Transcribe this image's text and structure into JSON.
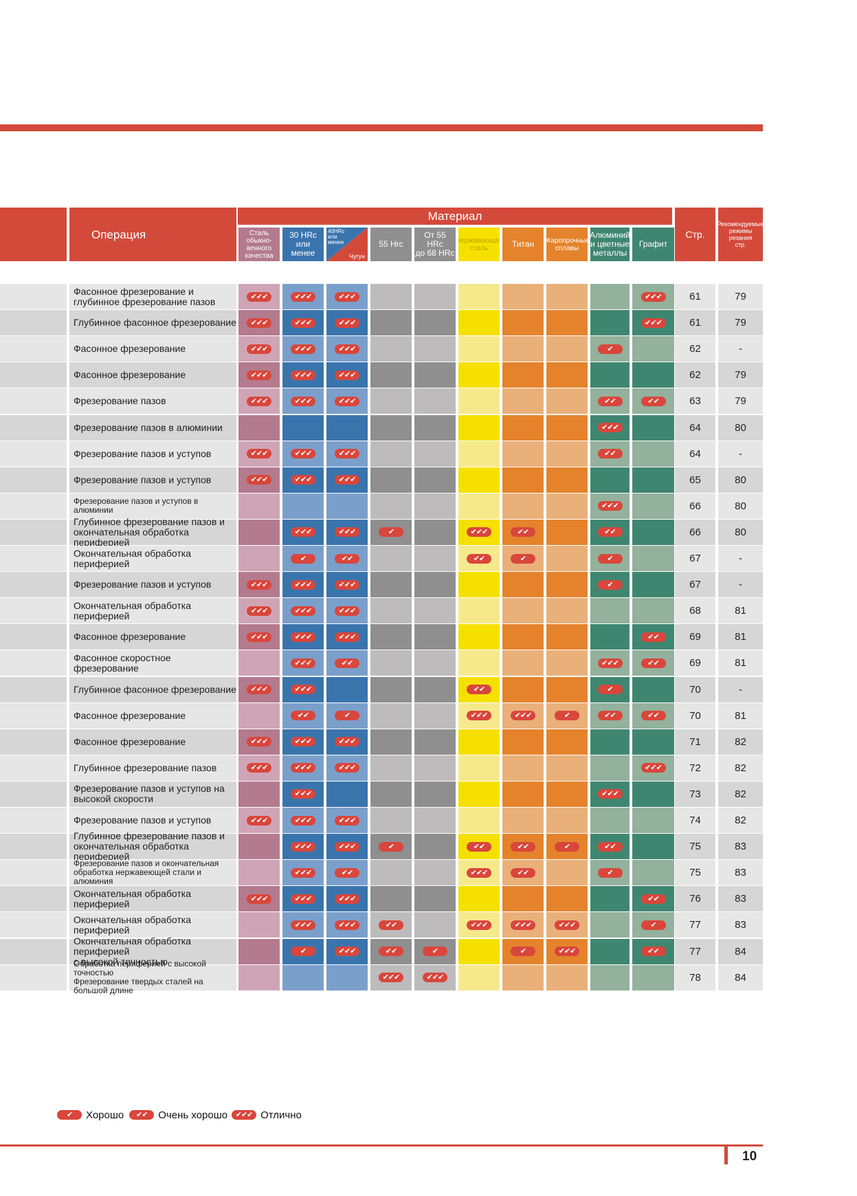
{
  "header": {
    "operation_label": "Операция",
    "material_label": "Материал",
    "page_col": "Стр.",
    "rec_col": "Рекомендуемые\nрежимы\nрезания\nстр."
  },
  "materials": [
    {
      "label": "Сталь\nобыкно-\nвенного\nкачества",
      "color": "#b47a8e",
      "light": "#cfa5b6",
      "small": true
    },
    {
      "label": "30 HRc\nили менее",
      "color": "#3a74ad",
      "light": "#7b9fcb",
      "small": false
    },
    {
      "label_a": "40HRc\nили\nменее",
      "label_b": "Чугун",
      "color": "#3a74ad",
      "light": "#7b9fcb",
      "cast": true
    },
    {
      "label": "55 Hrc",
      "color": "#8f8f8f",
      "light": "#bdbbbb",
      "small": false
    },
    {
      "label": "От 55 HRc\nдо 68 HRc",
      "color": "#8f8f8f",
      "light": "#bdbbbb",
      "small": false
    },
    {
      "label": "Нержавеющая\nсталь",
      "color": "#f6e000",
      "light": "#f6e98c",
      "small": true,
      "text_color": "#b8a400"
    },
    {
      "label": "Титан",
      "color": "#e4832c",
      "light": "#e9b07a",
      "small": false
    },
    {
      "label": "Жаропрочные\nсплавы",
      "color": "#e4832c",
      "light": "#e9b07a",
      "small": true
    },
    {
      "label": "Алюминий\nи цветные\nметаллы",
      "color": "#3f8670",
      "light": "#93b19c",
      "small": false
    },
    {
      "label": "Графит",
      "color": "#3f8670",
      "light": "#93b19c",
      "small": false
    }
  ],
  "rows": [
    {
      "op": "Фасонное фрезерование и\nглубинное фрезерование пазов",
      "r": [
        3,
        3,
        3,
        0,
        0,
        0,
        0,
        0,
        0,
        3
      ],
      "page": "61",
      "rec": "79"
    },
    {
      "op": "Глубинное фасонное фрезерование",
      "r": [
        3,
        3,
        3,
        0,
        0,
        0,
        0,
        0,
        0,
        3
      ],
      "page": "61",
      "rec": "79"
    },
    {
      "op": "Фасонное фрезерование",
      "r": [
        3,
        3,
        3,
        0,
        0,
        0,
        0,
        0,
        1,
        0
      ],
      "page": "62",
      "rec": "-"
    },
    {
      "op": "Фасонное фрезерование",
      "r": [
        3,
        3,
        3,
        0,
        0,
        0,
        0,
        0,
        0,
        0
      ],
      "page": "62",
      "rec": "79"
    },
    {
      "op": "Фрезерование пазов",
      "r": [
        3,
        3,
        3,
        0,
        0,
        0,
        0,
        0,
        2,
        2
      ],
      "page": "63",
      "rec": "79"
    },
    {
      "op": "Фрезерование пазов в алюминии",
      "r": [
        0,
        0,
        0,
        0,
        0,
        0,
        0,
        0,
        3,
        0
      ],
      "page": "64",
      "rec": "80"
    },
    {
      "op": "Фрезерование пазов и уступов",
      "r": [
        3,
        3,
        3,
        0,
        0,
        0,
        0,
        0,
        2,
        0
      ],
      "page": "64",
      "rec": "-"
    },
    {
      "op": "Фрезерование пазов и уступов",
      "r": [
        3,
        3,
        3,
        0,
        0,
        0,
        0,
        0,
        0,
        0
      ],
      "page": "65",
      "rec": "80"
    },
    {
      "op": "Фрезерование пазов и уступов в алюминии",
      "r": [
        0,
        0,
        0,
        0,
        0,
        0,
        0,
        0,
        3,
        0
      ],
      "page": "66",
      "rec": "80",
      "small": true
    },
    {
      "op": "Глубинное фрезерование пазов и\nокончательная обработка периферией",
      "r": [
        0,
        3,
        3,
        1,
        0,
        3,
        2,
        0,
        2,
        0
      ],
      "page": "66",
      "rec": "80"
    },
    {
      "op": "Окончательная обработка периферией",
      "r": [
        0,
        1,
        2,
        0,
        0,
        2,
        1,
        0,
        1,
        0
      ],
      "page": "67",
      "rec": "-"
    },
    {
      "op": "Фрезерование пазов и уступов",
      "r": [
        3,
        3,
        3,
        0,
        0,
        0,
        0,
        0,
        1,
        0
      ],
      "page": "67",
      "rec": "-"
    },
    {
      "op": "Окончательная обработка периферией",
      "r": [
        3,
        3,
        3,
        0,
        0,
        0,
        0,
        0,
        0,
        0
      ],
      "page": "68",
      "rec": "81"
    },
    {
      "op": "Фасонное фрезерование",
      "r": [
        3,
        3,
        3,
        0,
        0,
        0,
        0,
        0,
        0,
        2
      ],
      "page": "69",
      "rec": "81"
    },
    {
      "op": "Фасонное скоростное\nфрезерование",
      "r": [
        0,
        3,
        2,
        0,
        0,
        0,
        0,
        0,
        3,
        2
      ],
      "page": "69",
      "rec": "81"
    },
    {
      "op": "Глубинное фасонное фрезерование",
      "r": [
        3,
        3,
        0,
        0,
        0,
        2,
        0,
        0,
        1,
        0
      ],
      "page": "70",
      "rec": "-"
    },
    {
      "op": "Фасонное фрезерование",
      "r": [
        0,
        2,
        1,
        0,
        0,
        3,
        3,
        1,
        2,
        2
      ],
      "page": "70",
      "rec": "81"
    },
    {
      "op": "Фасонное фрезерование",
      "r": [
        3,
        3,
        3,
        0,
        0,
        0,
        0,
        0,
        0,
        0
      ],
      "page": "71",
      "rec": "82"
    },
    {
      "op": "Глубинное фрезерование пазов",
      "r": [
        3,
        3,
        3,
        0,
        0,
        0,
        0,
        0,
        0,
        3
      ],
      "page": "72",
      "rec": "82"
    },
    {
      "op": "Фрезерование пазов и уступов на\nвысокой скорости",
      "r": [
        0,
        3,
        0,
        0,
        0,
        0,
        0,
        0,
        3,
        0
      ],
      "page": "73",
      "rec": "82"
    },
    {
      "op": "Фрезерование пазов и уступов",
      "r": [
        3,
        3,
        3,
        0,
        0,
        0,
        0,
        0,
        0,
        0
      ],
      "page": "74",
      "rec": "82"
    },
    {
      "op": "Глубинное фрезерование пазов и\nокончательная обработка периферией",
      "r": [
        0,
        3,
        3,
        1,
        0,
        2,
        2,
        1,
        2,
        0
      ],
      "page": "75",
      "rec": "83"
    },
    {
      "op": "Фрезерование пазов и окончательная\nобработка нержавеющей стали и алюминия",
      "r": [
        0,
        3,
        2,
        0,
        0,
        3,
        2,
        0,
        1,
        0
      ],
      "page": "75",
      "rec": "83",
      "small": true
    },
    {
      "op": "Окончательная обработка периферией",
      "r": [
        3,
        3,
        3,
        0,
        0,
        0,
        0,
        0,
        0,
        2
      ],
      "page": "76",
      "rec": "83"
    },
    {
      "op": "Окончательная обработка периферией",
      "r": [
        0,
        3,
        3,
        2,
        0,
        3,
        3,
        3,
        0,
        1
      ],
      "page": "77",
      "rec": "83"
    },
    {
      "op": "Окончательная обработка периферией\nс высокой точностью",
      "r": [
        0,
        1,
        3,
        2,
        1,
        0,
        1,
        3,
        0,
        2
      ],
      "page": "77",
      "rec": "84"
    },
    {
      "op": "Обработка периферией  с высокой точностью\nФрезерование твердых сталей на большой длине",
      "r": [
        0,
        0,
        0,
        3,
        3,
        0,
        0,
        0,
        0,
        0
      ],
      "page": "78",
      "rec": "84",
      "small": true
    }
  ],
  "badges": [
    "✔",
    "✔✔",
    "✔✔✔"
  ],
  "legend": [
    {
      "level": 1,
      "label": "Хорошо"
    },
    {
      "level": 2,
      "label": "Очень хорошо"
    },
    {
      "level": 3,
      "label": "Отлично"
    }
  ],
  "page_number": "10",
  "colors": {
    "accent": "#d34a3b",
    "row_dark": "#d7d6d6",
    "row_light": "#e6e6e6"
  }
}
